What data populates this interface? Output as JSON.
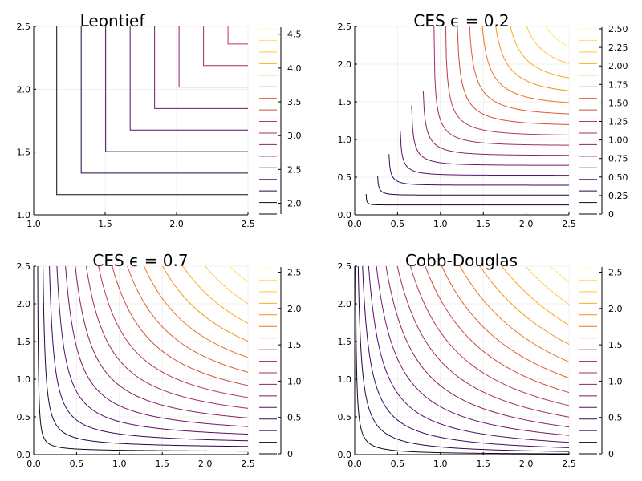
{
  "chart_data": [
    {
      "type": "contour",
      "title": "Leontief",
      "function": "leontief",
      "x": {
        "min": 1.0,
        "max": 2.5,
        "ticks": [
          1.0,
          1.5,
          2.0,
          2.5
        ],
        "tick_labels": [
          "1.0",
          "1.5",
          "2.0",
          "2.5"
        ]
      },
      "y": {
        "min": 1.0,
        "max": 2.5,
        "ticks": [
          1.0,
          1.5,
          2.0,
          2.5
        ],
        "tick_labels": [
          "1.0",
          "1.5",
          "2.0",
          "2.5"
        ]
      },
      "levels": {
        "min": 1.84,
        "max": 4.58,
        "count": 17
      },
      "colorbar": {
        "min": 1.84,
        "max": 4.58,
        "ticks": [
          2.0,
          2.5,
          3.0,
          3.5,
          4.0,
          4.5
        ],
        "tick_labels": [
          "2.0",
          "2.5",
          "3.0",
          "3.5",
          "4.0",
          "4.5"
        ]
      },
      "grid": true
    },
    {
      "type": "contour",
      "title": "CES ϵ = 0.2",
      "function": "ces",
      "epsilon": 0.2,
      "x": {
        "min": 0.0,
        "max": 2.5,
        "ticks": [
          0.0,
          0.5,
          1.0,
          1.5,
          2.0,
          2.5
        ],
        "tick_labels": [
          "0.0",
          "0.5",
          "1.0",
          "1.5",
          "2.0",
          "2.5"
        ]
      },
      "y": {
        "min": 0.0,
        "max": 2.5,
        "ticks": [
          0.0,
          0.5,
          1.0,
          1.5,
          2.0,
          2.5
        ],
        "tick_labels": [
          "0.0",
          "0.5",
          "1.0",
          "1.5",
          "2.0",
          "2.5"
        ]
      },
      "levels": {
        "min": 0.0,
        "max": 2.5,
        "count": 17
      },
      "colorbar": {
        "min": 0.0,
        "max": 2.5,
        "ticks": [
          0,
          0.25,
          0.5,
          0.75,
          1.0,
          1.25,
          1.5,
          1.75,
          2.0,
          2.25,
          2.5
        ],
        "tick_labels": [
          "0",
          "0.25",
          "0.50",
          "0.75",
          "1.00",
          "1.25",
          "1.50",
          "1.75",
          "2.00",
          "2.25",
          "2.50"
        ]
      },
      "grid": true
    },
    {
      "type": "contour",
      "title": "CES ϵ = 0.7",
      "function": "ces",
      "epsilon": 0.7,
      "x": {
        "min": 0.0,
        "max": 2.5,
        "ticks": [
          0.0,
          0.5,
          1.0,
          1.5,
          2.0,
          2.5
        ],
        "tick_labels": [
          "0.0",
          "0.5",
          "1.0",
          "1.5",
          "2.0",
          "2.5"
        ]
      },
      "y": {
        "min": 0.0,
        "max": 2.5,
        "ticks": [
          0.0,
          0.5,
          1.0,
          1.5,
          2.0,
          2.5
        ],
        "tick_labels": [
          "0.0",
          "0.5",
          "1.0",
          "1.5",
          "2.0",
          "2.5"
        ]
      },
      "levels": {
        "min": 0.0,
        "max": 2.55,
        "count": 17
      },
      "colorbar": {
        "min": 0.0,
        "max": 2.55,
        "ticks": [
          0,
          0.5,
          1.0,
          1.5,
          2.0,
          2.5
        ],
        "tick_labels": [
          "0",
          "0.5",
          "1.0",
          "1.5",
          "2.0",
          "2.5"
        ]
      },
      "grid": true
    },
    {
      "type": "contour",
      "title": "Cobb-Douglas",
      "function": "cobb_douglas",
      "x": {
        "min": 0.0,
        "max": 2.5,
        "ticks": [
          0.0,
          0.5,
          1.0,
          1.5,
          2.0,
          2.5
        ],
        "tick_labels": [
          "0.0",
          "0.5",
          "1.0",
          "1.5",
          "2.0",
          "2.5"
        ]
      },
      "y": {
        "min": 0.0,
        "max": 2.5,
        "ticks": [
          0.0,
          0.5,
          1.0,
          1.5,
          2.0,
          2.5
        ],
        "tick_labels": [
          "0.0",
          "0.5",
          "1.0",
          "1.5",
          "2.0",
          "2.5"
        ]
      },
      "levels": {
        "min": 0.0,
        "max": 2.55,
        "count": 17
      },
      "colorbar": {
        "min": 0.0,
        "max": 2.55,
        "ticks": [
          0,
          0.5,
          1.0,
          1.5,
          2.0,
          2.5
        ],
        "tick_labels": [
          "0",
          "0.5",
          "1.0",
          "1.5",
          "2.0",
          "2.5"
        ]
      },
      "grid": true
    }
  ],
  "colors": {
    "colormap": [
      "#000004",
      "#420A68",
      "#932667",
      "#DD513A",
      "#FCA50A",
      "#FCFFA4"
    ],
    "axis": "#000000",
    "grid": "#e6e6e6"
  }
}
